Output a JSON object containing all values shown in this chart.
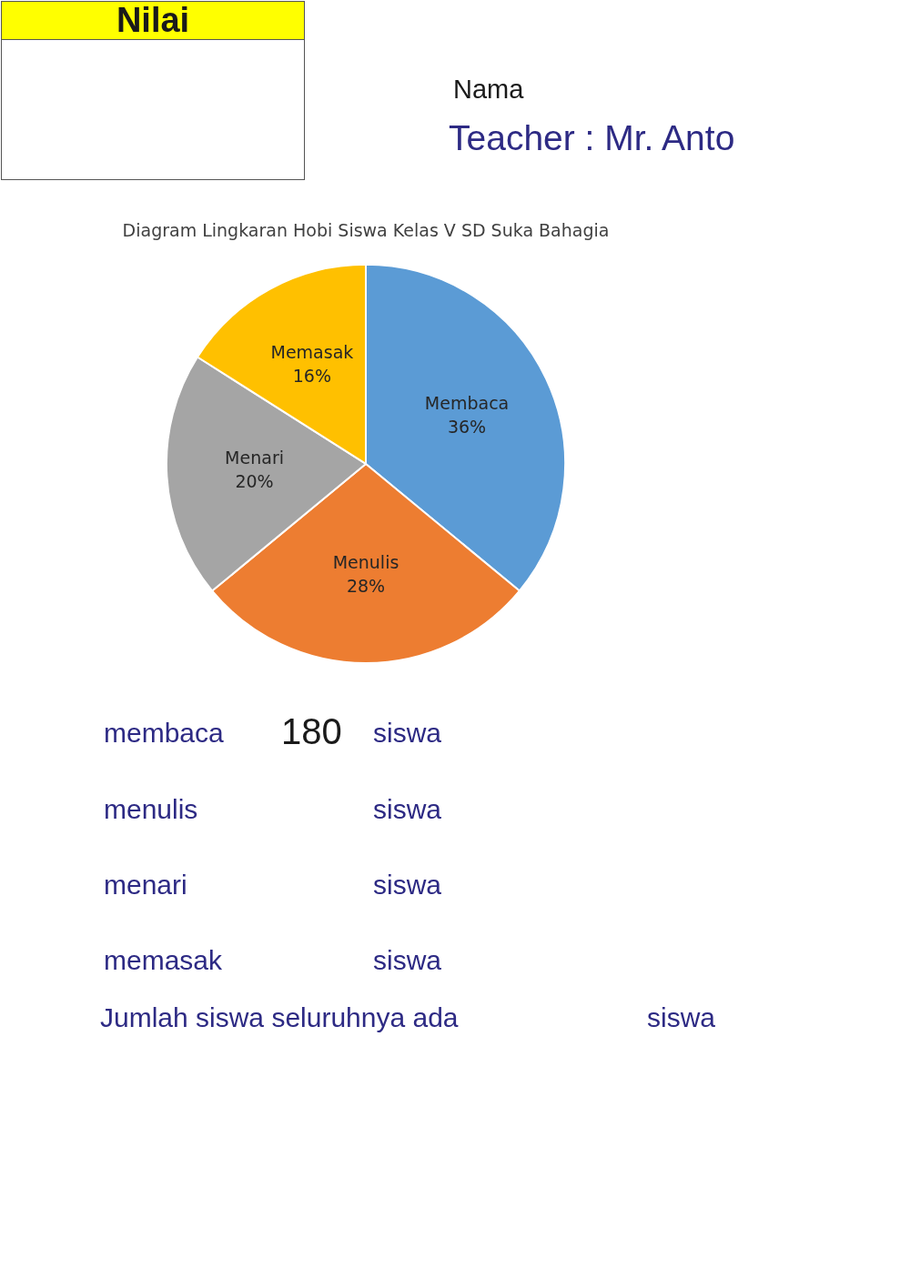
{
  "chart_data": {
    "type": "pie",
    "title": "Diagram Lingkaran Hobi Siswa Kelas V SD Suka Bahagia",
    "categories": [
      "Membaca",
      "Menulis",
      "Menari",
      "Memasak"
    ],
    "values": [
      36,
      28,
      20,
      16
    ],
    "colors": [
      "#5b9bd5",
      "#ed7d31",
      "#a5a5a5",
      "#ffc000"
    ],
    "value_labels": [
      "36%",
      "28%",
      "20%",
      "16%"
    ],
    "annotations": [
      "Nilai",
      "Nama",
      "Teacher : Mr. Anto",
      "membaca",
      "180",
      "siswa",
      "menulis",
      "siswa",
      "menari",
      "siswa",
      "memasak",
      "siswa",
      "Jumlah siswa seluruhnya ada",
      "siswa"
    ]
  }
}
